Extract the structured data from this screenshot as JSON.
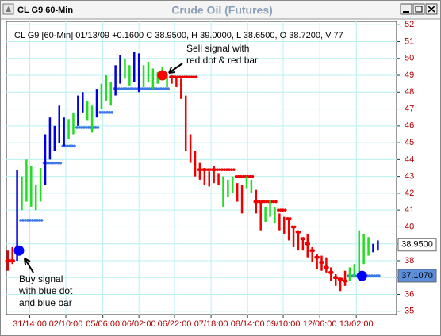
{
  "window_title": "CL G9 60-Min",
  "chart_data": {
    "type": "hilo",
    "title": "Crude Oil (Futures)",
    "info": "CL G9 [60-Min] 01/13/09 +0.1600 C 38.9500, H 39.0000, L 38.6500, O 38.7200, V 77",
    "xlim": [
      -0.3,
      83
    ],
    "xticks": [
      {
        "value": 4.7,
        "label": "31/14:00"
      },
      {
        "value": 12.4,
        "label": "02/10:00"
      },
      {
        "value": 20.3,
        "label": "05/06:00"
      },
      {
        "value": 28.0,
        "label": "06/02:00"
      },
      {
        "value": 35.6,
        "label": "06/22:00"
      },
      {
        "value": 43.4,
        "label": "07/18:00"
      },
      {
        "value": 51.2,
        "label": "08/14:00"
      },
      {
        "value": 58.8,
        "label": "09/10:00"
      },
      {
        "value": 66.6,
        "label": "12/06:00"
      },
      {
        "value": 74.4,
        "label": "13/02:00"
      }
    ],
    "ylim": [
      34.8,
      52.2
    ],
    "yticks": [
      35,
      36,
      37,
      38,
      39,
      40,
      41,
      42,
      43,
      44,
      45,
      46,
      47,
      48,
      49,
      50,
      51,
      52
    ],
    "grid": true,
    "high": [
      38.6,
      38.8,
      43.4,
      43.0,
      44.0,
      43.6,
      42.5,
      43.5,
      45.5,
      46.5,
      46.0,
      47.2,
      46.5,
      46.4,
      46.8,
      47.8,
      48.0,
      47.5,
      47.2,
      48.2,
      48.5,
      49.0,
      48.6,
      49.6,
      50.2,
      50.0,
      49.6,
      50.4,
      50.3,
      49.6,
      49.8,
      49.4,
      49.2,
      49.5,
      49.1,
      49.0,
      48.9,
      48.8,
      47.8,
      45.5,
      44.5,
      43.8,
      43.5,
      43.3,
      43.6,
      43.2,
      43.0,
      42.8,
      43.0,
      42.6,
      42.5,
      43.0,
      42.8,
      42.2,
      41.5,
      41.2,
      41.6,
      41.2,
      40.8,
      40.6,
      40.4,
      40.0,
      39.8,
      39.4,
      39.6,
      38.8,
      38.4,
      38.3,
      38.2,
      37.6,
      37.2,
      37.0,
      37.4,
      37.6,
      37.8,
      39.8,
      39.6,
      39.4,
      39.0,
      39.2
    ],
    "low": [
      37.4,
      37.8,
      38.0,
      41.0,
      41.5,
      41.2,
      41.0,
      41.5,
      42.5,
      44.0,
      44.5,
      45.0,
      44.8,
      45.2,
      45.5,
      46.0,
      46.8,
      46.3,
      45.6,
      46.5,
      47.0,
      47.5,
      47.2,
      47.8,
      48.5,
      48.8,
      48.4,
      48.6,
      48.0,
      48.3,
      48.6,
      48.2,
      48.5,
      48.8,
      48.3,
      48.5,
      48.3,
      47.6,
      44.5,
      43.8,
      43.0,
      42.8,
      42.5,
      42.4,
      42.6,
      42.5,
      41.2,
      41.8,
      42.0,
      41.5,
      40.8,
      42.3,
      42.0,
      40.8,
      39.8,
      40.3,
      40.6,
      40.2,
      39.8,
      39.6,
      39.2,
      38.8,
      38.6,
      38.6,
      38.2,
      37.9,
      37.5,
      37.4,
      37.3,
      36.8,
      36.5,
      36.2,
      36.5,
      36.8,
      37.0,
      37.0,
      37.8,
      38.3,
      38.5,
      38.6
    ],
    "colors": [
      "#ee0000",
      "#ee0000",
      "#0000dd",
      "#22dd22",
      "#22dd22",
      "#22dd22",
      "#22dd22",
      "#22dd22",
      "#0000dd",
      "#0000dd",
      "#0000dd",
      "#0000dd",
      "#0000dd",
      "#22dd22",
      "#22dd22",
      "#0000dd",
      "#0000dd",
      "#22dd22",
      "#22dd22",
      "#0000dd",
      "#22dd22",
      "#22dd22",
      "#22dd22",
      "#0000dd",
      "#0000dd",
      "#22dd22",
      "#22dd22",
      "#0000dd",
      "#0000dd",
      "#22dd22",
      "#22dd22",
      "#22dd22",
      "#22dd22",
      "#22dd22",
      "#22dd22",
      "#ee0000",
      "#ee0000",
      "#ee0000",
      "#ee0000",
      "#ee0000",
      "#ee0000",
      "#ee0000",
      "#ee0000",
      "#ee0000",
      "#ee0000",
      "#ee0000",
      "#22dd22",
      "#22dd22",
      "#22dd22",
      "#ee0000",
      "#ee0000",
      "#22dd22",
      "#22dd22",
      "#ee0000",
      "#ee0000",
      "#22dd22",
      "#22dd22",
      "#22dd22",
      "#ee0000",
      "#ee0000",
      "#ee0000",
      "#ee0000",
      "#ee0000",
      "#ee0000",
      "#ee0000",
      "#ee0000",
      "#ee0000",
      "#ee0000",
      "#ee0000",
      "#ee0000",
      "#ee0000",
      "#ee0000",
      "#ee0000",
      "#22dd22",
      "#22dd22",
      "#22dd22",
      "#22dd22",
      "#22dd22",
      "#0000dd",
      "#0000dd"
    ],
    "stops": [
      {
        "color": "#3a78e8",
        "values": [
          null,
          null,
          null,
          40.4,
          40.4,
          40.4,
          40.4,
          40.4,
          43.8,
          43.8,
          43.8,
          43.8,
          44.8,
          44.8,
          44.8,
          45.9,
          45.9,
          45.9,
          45.9,
          45.9,
          46.8,
          46.8,
          46.8,
          48.2,
          48.2,
          48.2,
          48.2,
          48.2,
          48.2,
          48.2,
          48.2,
          48.2,
          48.2,
          48.2,
          48.2,
          null,
          null,
          null,
          null,
          null,
          null,
          null,
          null,
          null,
          null,
          null,
          null,
          null,
          null,
          null,
          null,
          null,
          null,
          null,
          null,
          null,
          null,
          null,
          null,
          null,
          null,
          null,
          null,
          null,
          null,
          null,
          null,
          null,
          null,
          null,
          null,
          null,
          null,
          37.1,
          37.1,
          37.1,
          37.1,
          37.1,
          37.1,
          37.1
        ]
      },
      {
        "color": "#ee0000",
        "values": [
          38.0,
          38.0,
          null,
          null,
          null,
          null,
          null,
          null,
          null,
          null,
          null,
          null,
          null,
          null,
          null,
          null,
          null,
          null,
          null,
          null,
          null,
          null,
          null,
          null,
          null,
          null,
          null,
          null,
          null,
          null,
          null,
          null,
          null,
          null,
          null,
          48.9,
          48.9,
          48.9,
          48.9,
          48.9,
          48.9,
          43.4,
          43.4,
          43.4,
          43.4,
          43.4,
          43.4,
          43.4,
          43.4,
          43.0,
          43.0,
          43.0,
          43.0,
          41.5,
          41.5,
          41.5,
          41.5,
          41.5,
          41.0,
          41.0,
          40.5,
          40.0,
          39.7,
          39.3,
          39.0,
          38.6,
          38.2,
          37.9,
          37.6,
          37.3,
          37.0,
          36.9,
          36.8,
          null,
          null,
          null,
          null,
          null,
          null,
          null
        ]
      }
    ],
    "signals": [
      {
        "x": 2.4,
        "y": 38.6,
        "color": "#0000ff"
      },
      {
        "x": 33,
        "y": 49.0,
        "color": "#ff0000"
      },
      {
        "x": 75.6,
        "y": 37.1,
        "color": "#0000ff"
      }
    ],
    "price_labels": [
      {
        "value": 38.95,
        "label": "38.9500",
        "bg": "#ffffff"
      },
      {
        "value": 37.107,
        "label": "37.1070",
        "bg": "#5b8fdc"
      }
    ],
    "annotations": [
      {
        "lines": [
          "Sell signal with",
          "red dot & red bar"
        ]
      },
      {
        "lines": [
          "Buy signal",
          "with blue dot",
          "and blue bar"
        ]
      }
    ]
  }
}
